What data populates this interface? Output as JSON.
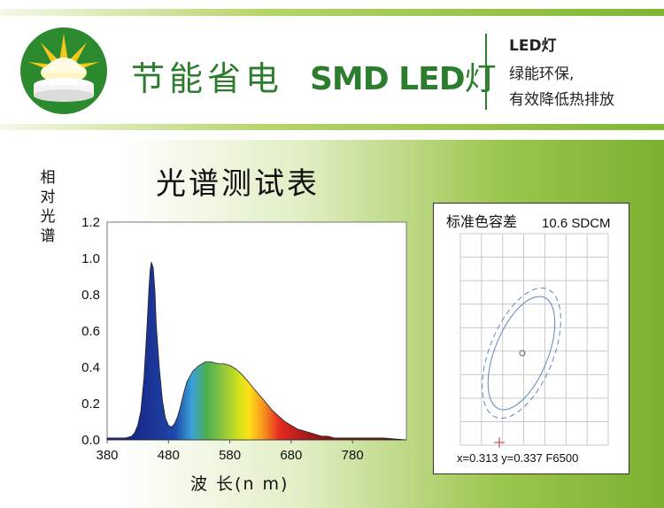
{
  "header": {
    "title_cn": "节能省电",
    "title_led": "SMD LED",
    "title_led_suffix": "灯",
    "side_lines": [
      "LED灯",
      "绿能环保,",
      "有效降低热排放"
    ]
  },
  "colors": {
    "brand_green": "#2c7e2e",
    "accent_green": "#7cb030",
    "sun_yellow": "#f3c81e"
  },
  "icons": {
    "logo": "sun-led-logo-icon"
  },
  "spectrum_title": "光谱测试表",
  "sdcm": {
    "title": "标准色容差",
    "value": "10.6 SDCM",
    "coords": "x=0.313 y=0.337 F6500",
    "chromaticity_x": 0.313,
    "chromaticity_y": 0.337
  },
  "chart_data": {
    "type": "area",
    "title": "光谱测试表",
    "xlabel": "波 长(n m)",
    "ylabel": "相对光谱",
    "xlim": [
      380,
      780
    ],
    "ylim": [
      0,
      1.2
    ],
    "x_ticks": [
      380,
      480,
      580,
      680,
      780
    ],
    "y_ticks": [
      "0.0",
      "0.2",
      "0.4",
      "0.6",
      "0.8",
      "1.0",
      "1.2"
    ],
    "grid": false,
    "x": [
      380,
      400,
      410,
      420,
      425,
      430,
      435,
      440,
      445,
      448,
      450,
      452,
      455,
      458,
      460,
      465,
      470,
      475,
      480,
      485,
      490,
      495,
      500,
      505,
      510,
      520,
      530,
      540,
      550,
      560,
      570,
      580,
      590,
      600,
      610,
      620,
      630,
      640,
      650,
      660,
      670,
      680,
      690,
      700,
      710,
      720,
      730,
      740,
      750,
      760,
      770,
      780,
      790,
      800,
      810,
      830
    ],
    "y": [
      0.01,
      0.01,
      0.01,
      0.02,
      0.04,
      0.08,
      0.16,
      0.34,
      0.62,
      0.82,
      0.93,
      0.98,
      0.95,
      0.82,
      0.64,
      0.4,
      0.22,
      0.12,
      0.08,
      0.07,
      0.09,
      0.13,
      0.19,
      0.26,
      0.32,
      0.38,
      0.41,
      0.43,
      0.43,
      0.42,
      0.42,
      0.41,
      0.39,
      0.36,
      0.32,
      0.28,
      0.24,
      0.2,
      0.16,
      0.13,
      0.1,
      0.08,
      0.06,
      0.05,
      0.04,
      0.03,
      0.02,
      0.02,
      0.01,
      0.01,
      0.01,
      0.01,
      0.01,
      0.01,
      0.01,
      0.01
    ]
  }
}
